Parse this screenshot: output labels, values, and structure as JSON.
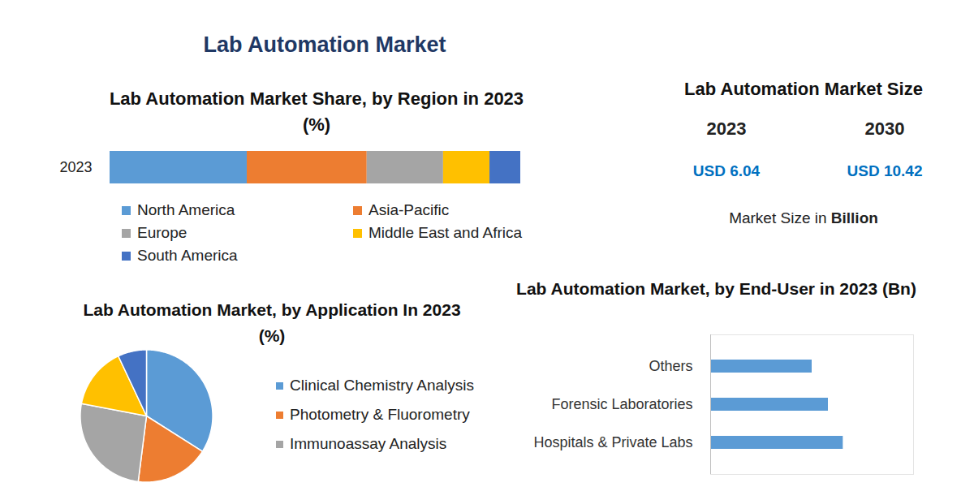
{
  "title": "Lab Automation Market",
  "market_size": {
    "title": "Lab Automation Market Size",
    "currency": "USD",
    "items": [
      {
        "year": "2023",
        "value": 6.04
      },
      {
        "year": "2030",
        "value": 10.42
      }
    ],
    "unit_text": "Market Size in",
    "unit": "Billion"
  },
  "chart_data": [
    {
      "type": "bar",
      "title": "Lab Automation Market Share, by Region in 2023 (%)",
      "orientation": "horizontal",
      "stacked": true,
      "categories": [
        "2023"
      ],
      "series": [
        {
          "name": "North America",
          "color": "#5b9bd5",
          "values": [
            33.4
          ]
        },
        {
          "name": "Asia-Pacific",
          "color": "#ed7d31",
          "values": [
            29.2
          ]
        },
        {
          "name": "Europe",
          "color": "#a5a5a5",
          "values": [
            18.6
          ]
        },
        {
          "name": "Middle East and Africa",
          "color": "#ffc000",
          "values": [
            11.3
          ]
        },
        {
          "name": "South America",
          "color": "#4472c4",
          "values": [
            7.5
          ]
        }
      ],
      "xlim": [
        0,
        100
      ],
      "tick_labels": "y",
      "legend": "bottom"
    },
    {
      "type": "pie",
      "title": "Lab Automation Market, by Application In 2023 (%)",
      "categories": [
        "Clinical Chemistry Analysis",
        "Photometry & Fluorometry",
        "Immunoassay Analysis",
        null,
        null
      ],
      "values": [
        34,
        18,
        26,
        15,
        7
      ],
      "colors": [
        "#5b9bd5",
        "#ed7d31",
        "#a5a5a5",
        "#ffc000",
        "#4472c4"
      ],
      "legend": "right"
    },
    {
      "type": "bar",
      "title": "Lab Automation Market, by End-User in 2023 (Bn)",
      "orientation": "horizontal",
      "categories": [
        "Others",
        "Forensic Laboratories",
        "Hospitals & Private Labs"
      ],
      "values": [
        0.75,
        0.87,
        0.98
      ],
      "color": "#5b9bd5",
      "xlim": [
        0,
        1.5
      ],
      "tick_labels": "y"
    }
  ]
}
